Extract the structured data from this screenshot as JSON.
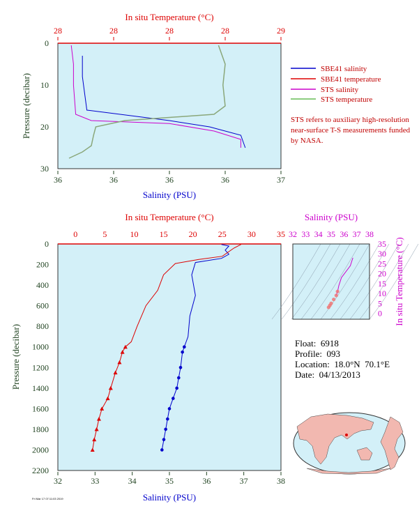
{
  "colors": {
    "salinity": "#0000cc",
    "temperature": "#dd0000",
    "sts_salinity": "#cc00cc",
    "sts_temperature": "#66bb55",
    "plot_bg": "#d3f0f8",
    "ts_axis": "#cc00cc",
    "pressure_axis": "#224422",
    "map_land": "#f2b8b0",
    "map_ocean": "#d3f0f8"
  },
  "legend": {
    "items": [
      {
        "label": "SBE41 salinity",
        "color": "#0000cc"
      },
      {
        "label": "SBE41 temperature",
        "color": "#dd0000"
      },
      {
        "label": "STS salinity",
        "color": "#cc00cc"
      },
      {
        "label": "STS temperature",
        "color": "#66bb55"
      }
    ]
  },
  "sts_note": "STS refers to auxiliary high-resolution near-surface T-S measurements funded by NASA.",
  "float_info": {
    "float": "Float:  6918",
    "profile": "Profile:  093",
    "location": "Location:  18.0°N  70.1°E",
    "date": "Date:  04/13/2013"
  },
  "stamp": "Fri Mar 17 07:11:03 2019",
  "chart_data": [
    {
      "type": "line",
      "panel": "near-surface profile",
      "xlabel": "Salinity (PSU)",
      "x2label": "In situ Temperature (°C)",
      "ylabel": "Pressure (decibar)",
      "salinity_ticks": [
        "36",
        "36",
        "36",
        "36",
        "37"
      ],
      "temperature_ticks": [
        "28",
        "28",
        "28",
        "28",
        "29"
      ],
      "pressure_ticks": [
        "0",
        "10",
        "20",
        "30"
      ],
      "salinity_lim": [
        36.0,
        37.0
      ],
      "temperature_lim": [
        28.0,
        29.0
      ],
      "pressure_lim": [
        30,
        0
      ],
      "series": [
        {
          "name": "SBE41 salinity",
          "x": [
            36.11,
            36.11,
            36.12,
            36.13,
            36.5,
            36.68,
            36.82,
            36.84
          ],
          "y": [
            3,
            8,
            12,
            16,
            18.5,
            20,
            22,
            25
          ]
        },
        {
          "name": "STS salinity",
          "x": [
            36.06,
            36.07,
            36.07,
            36.08,
            36.15,
            36.5,
            36.7,
            36.82,
            36.82
          ],
          "y": [
            0.5,
            5,
            10,
            17,
            18.5,
            19.2,
            21,
            23,
            25
          ]
        },
        {
          "name": "STS temperature",
          "x": [
            28.72,
            28.75,
            28.74,
            28.75,
            28.7,
            28.3,
            28.17,
            28.16,
            28.15,
            28.11,
            28.05
          ],
          "y": [
            0.5,
            5,
            10,
            15,
            17,
            18.5,
            20,
            22,
            24.5,
            26,
            27.5
          ]
        }
      ]
    },
    {
      "type": "line",
      "panel": "full-depth profile",
      "xlabel": "Salinity (PSU)",
      "x2label": "In situ Temperature (°C)",
      "ylabel": "Pressure (decibar)",
      "salinity_ticks": [
        "32",
        "33",
        "34",
        "35",
        "36",
        "37",
        "38"
      ],
      "temperature_ticks": [
        "0",
        "5",
        "10",
        "15",
        "20",
        "25",
        "30",
        "35"
      ],
      "pressure_ticks": [
        "0",
        "200",
        "400",
        "600",
        "800",
        "1000",
        "1200",
        "1400",
        "1600",
        "1800",
        "2000",
        "2200"
      ],
      "salinity_lim": [
        32,
        38
      ],
      "temperature_lim": [
        -3,
        35
      ],
      "pressure_lim": [
        2200,
        0
      ],
      "series": [
        {
          "name": "SBE41 salinity",
          "x": [
            36.4,
            36.6,
            36.5,
            36.6,
            36.4,
            35.7,
            35.6,
            35.7,
            35.55,
            35.5,
            35.4,
            35.35,
            35.3,
            35.25,
            35.2,
            35.1,
            35.0,
            34.95,
            34.9,
            34.85,
            34.8
          ],
          "y": [
            5,
            20,
            60,
            100,
            140,
            180,
            300,
            500,
            700,
            900,
            1000,
            1050,
            1200,
            1300,
            1400,
            1500,
            1600,
            1700,
            1800,
            1900,
            2000
          ]
        },
        {
          "name": "SBE41 temperature",
          "x": [
            28.2,
            27.0,
            25.0,
            21.0,
            17.0,
            15.0,
            14.0,
            12.0,
            10.5,
            9.5,
            8.5,
            8.0,
            7.5,
            6.8,
            6.0,
            5.5,
            4.5,
            4.0,
            3.6,
            3.2,
            2.9
          ],
          "y": [
            5,
            40,
            120,
            150,
            190,
            300,
            450,
            600,
            800,
            950,
            1000,
            1050,
            1150,
            1250,
            1400,
            1500,
            1600,
            1700,
            1800,
            1900,
            2000
          ]
        }
      ]
    },
    {
      "type": "scatter",
      "panel": "T-S diagram",
      "xlabel": "Salinity (PSU)",
      "ylabel": "In situ Temperature (°C)",
      "salinity_ticks": [
        "32",
        "33",
        "34",
        "35",
        "36",
        "37",
        "38"
      ],
      "temperature_ticks": [
        "0",
        "5",
        "10",
        "15",
        "20",
        "25",
        "30",
        "35"
      ],
      "salinity_lim": [
        32,
        38
      ],
      "temperature_lim": [
        -3,
        35
      ],
      "x": [
        36.7,
        36.6,
        36.5,
        35.8,
        35.6,
        35.5,
        35.4,
        35.2,
        35.0,
        34.9,
        34.8
      ],
      "y": [
        28,
        26,
        24,
        18,
        14,
        11,
        9,
        7,
        5,
        4,
        3
      ]
    }
  ]
}
